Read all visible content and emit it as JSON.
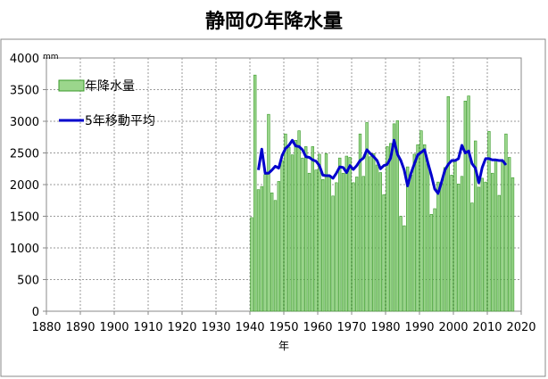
{
  "chart_data": {
    "type": "bar",
    "title": "静岡の年降水量",
    "xlabel": "年",
    "ylabel": "mm",
    "xlim": [
      1880,
      2020
    ],
    "ylim": [
      0,
      4000
    ],
    "xticks": [
      "1880",
      "1890",
      "1900",
      "1910",
      "1920",
      "1930",
      "1940",
      "1950",
      "1960",
      "1970",
      "1980",
      "1990",
      "2000",
      "2010",
      "2020"
    ],
    "yticks": [
      "0",
      "500",
      "1000",
      "1500",
      "2000",
      "2500",
      "3000",
      "3500",
      "4000"
    ],
    "grid": true,
    "legend_position": "top-left",
    "x": [
      1940,
      1941,
      1942,
      1943,
      1944,
      1945,
      1946,
      1947,
      1948,
      1949,
      1950,
      1951,
      1952,
      1953,
      1954,
      1955,
      1956,
      1957,
      1958,
      1959,
      1960,
      1961,
      1962,
      1963,
      1964,
      1965,
      1966,
      1967,
      1968,
      1969,
      1970,
      1971,
      1972,
      1973,
      1974,
      1975,
      1976,
      1977,
      1978,
      1979,
      1980,
      1981,
      1982,
      1983,
      1984,
      1985,
      1986,
      1987,
      1988,
      1989,
      1990,
      1991,
      1992,
      1993,
      1994,
      1995,
      1996,
      1997,
      1998,
      1999,
      2000,
      2001,
      2002,
      2003,
      2004,
      2005,
      2006,
      2007,
      2008,
      2009,
      2010,
      2011,
      2012,
      2013,
      2014,
      2015,
      2016,
      2017
    ],
    "series": [
      {
        "name": "年降水量",
        "type": "bar",
        "color": "#9bd68c",
        "values": [
          1480,
          3730,
          1920,
          1970,
          2160,
          3110,
          1870,
          1750,
          2050,
          2380,
          2800,
          2590,
          2470,
          2700,
          2850,
          2420,
          2600,
          2180,
          2600,
          2230,
          2480,
          2080,
          2490,
          2130,
          1820,
          2030,
          2420,
          2180,
          2450,
          2430,
          2030,
          2120,
          2800,
          2130,
          2980,
          2440,
          2490,
          2310,
          2190,
          1840,
          2600,
          2650,
          2960,
          3010,
          1500,
          1350,
          2280,
          2150,
          2480,
          2630,
          2850,
          2630,
          2330,
          1530,
          1620,
          2040,
          2030,
          2270,
          3390,
          2150,
          2370,
          2010,
          2130,
          3320,
          3400,
          1710,
          2690,
          1960,
          2100,
          2040,
          2840,
          2180,
          2400,
          1830,
          2360,
          2800,
          2430,
          2110
        ]
      },
      {
        "name": "5年移動平均",
        "type": "line",
        "color": "#0000cc",
        "x": [
          1942,
          1943,
          1944,
          1945,
          1946,
          1947,
          1948,
          1949,
          1950,
          1951,
          1952,
          1953,
          1954,
          1955,
          1956,
          1957,
          1958,
          1959,
          1960,
          1961,
          1962,
          1963,
          1964,
          1965,
          1966,
          1967,
          1968,
          1969,
          1970,
          1971,
          1972,
          1973,
          1974,
          1975,
          1976,
          1977,
          1978,
          1979,
          1980,
          1981,
          1982,
          1983,
          1984,
          1985,
          1986,
          1987,
          1988,
          1989,
          1990,
          1991,
          1992,
          1993,
          1994,
          1995,
          1996,
          1997,
          1998,
          1999,
          2000,
          2001,
          2002,
          2003,
          2004,
          2005,
          2006,
          2007,
          2008,
          2009,
          2010,
          2011,
          2012,
          2013,
          2014,
          2015
        ],
        "values": [
          2230,
          2560,
          2180,
          2180,
          2230,
          2290,
          2260,
          2460,
          2570,
          2620,
          2700,
          2610,
          2600,
          2550,
          2440,
          2430,
          2390,
          2370,
          2300,
          2150,
          2140,
          2140,
          2100,
          2180,
          2280,
          2270,
          2190,
          2300,
          2240,
          2300,
          2380,
          2420,
          2550,
          2490,
          2440,
          2380,
          2250,
          2300,
          2320,
          2420,
          2700,
          2480,
          2380,
          2230,
          1980,
          2180,
          2330,
          2470,
          2510,
          2550,
          2340,
          2150,
          1930,
          1860,
          2040,
          2230,
          2320,
          2380,
          2380,
          2410,
          2620,
          2500,
          2530,
          2330,
          2260,
          2030,
          2270,
          2410,
          2410,
          2390,
          2390,
          2380,
          2380,
          2310
        ]
      }
    ]
  }
}
